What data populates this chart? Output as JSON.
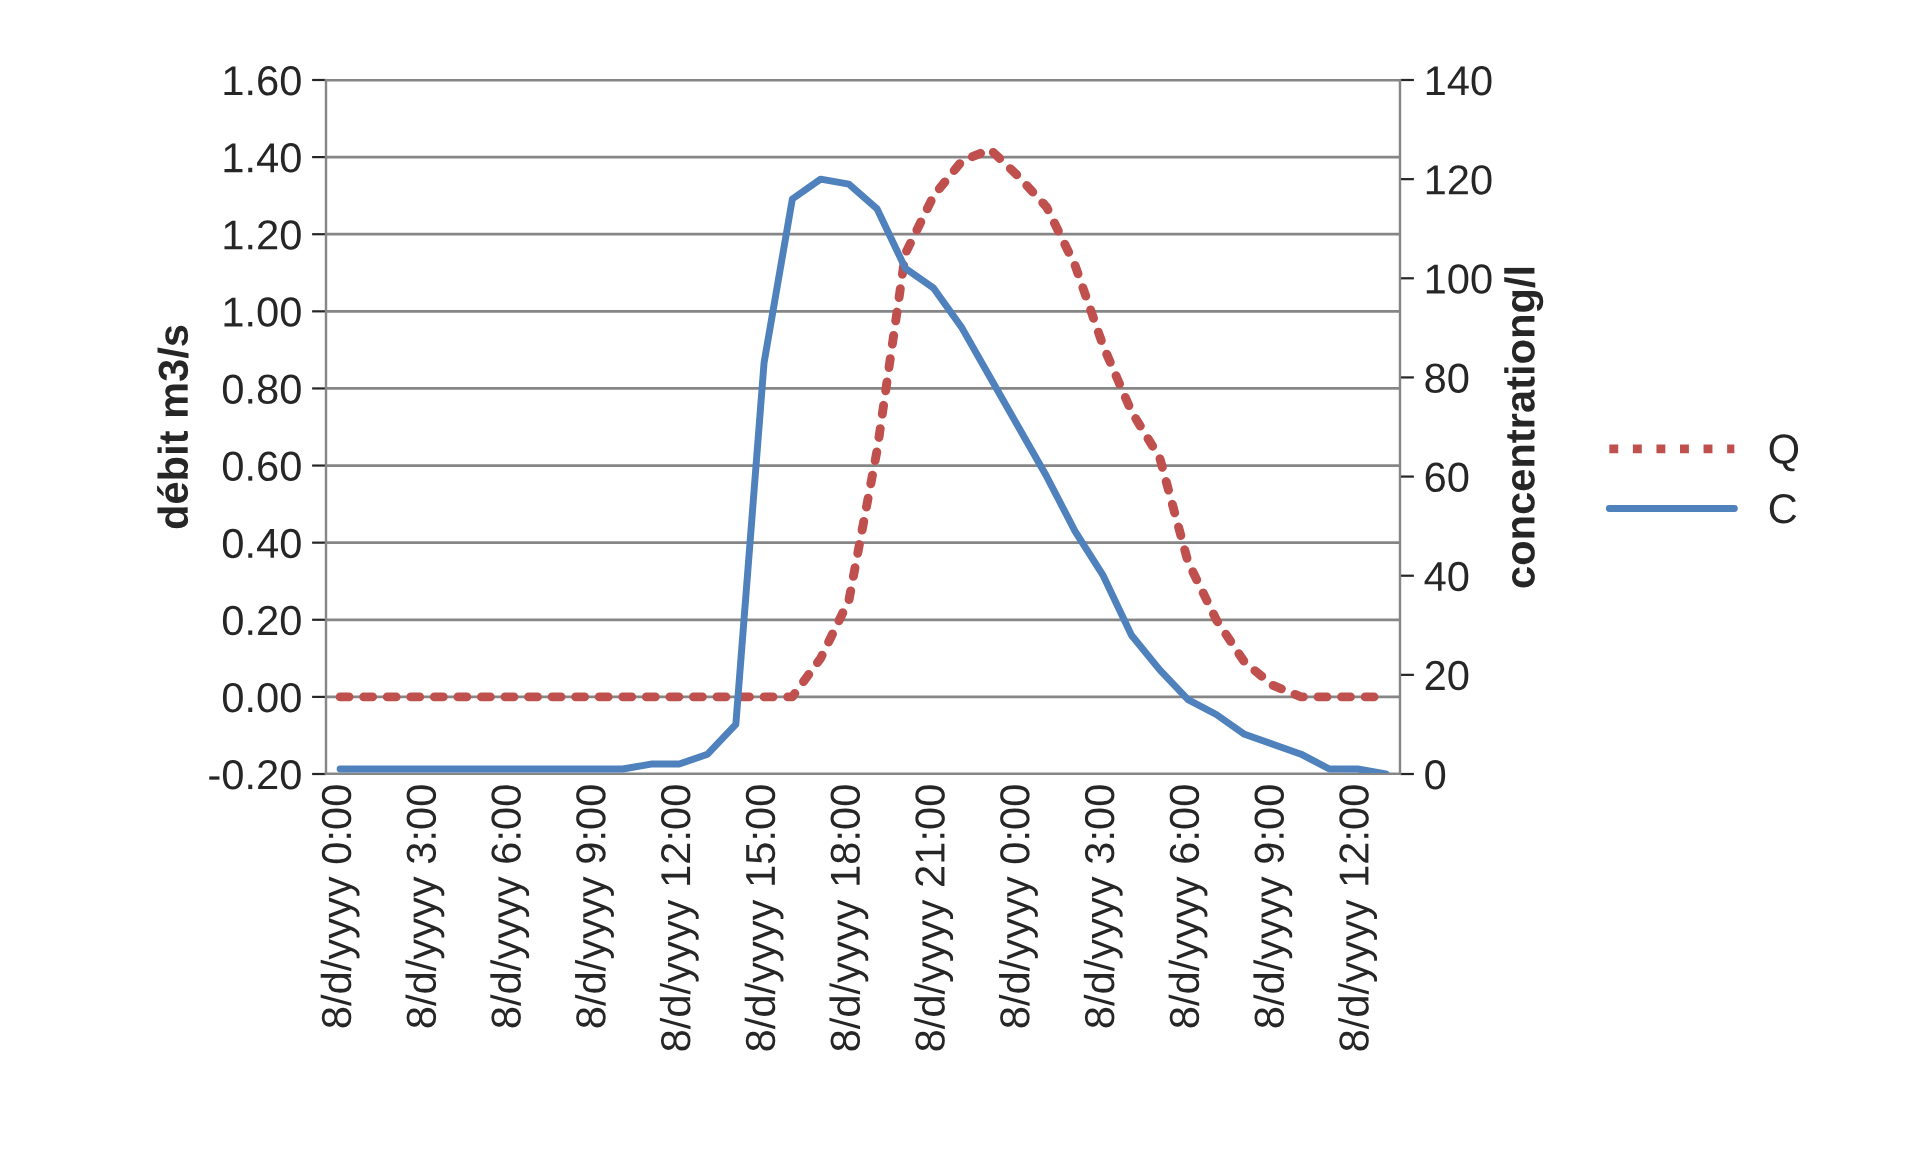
{
  "chart_data": {
    "type": "line",
    "ylabel": "débit m3/s",
    "y2label": "concentrationg/l",
    "categories": [
      "8/d/yyyy 0:00",
      null,
      null,
      "8/d/yyyy 3:00",
      null,
      null,
      "8/d/yyyy 6:00",
      null,
      null,
      "8/d/yyyy 9:00",
      null,
      null,
      "8/d/yyyy 12:00",
      null,
      null,
      "8/d/yyyy 15:00",
      null,
      null,
      "8/d/yyyy 18:00",
      null,
      null,
      "8/d/yyyy 21:00",
      null,
      null,
      "8/d/yyyy 0:00",
      null,
      null,
      "8/d/yyyy 3:00",
      null,
      null,
      "8/d/yyyy 6:00",
      null,
      null,
      "8/d/yyyy 9:00",
      null,
      null,
      "8/d/yyyy 12:00",
      null
    ],
    "series": [
      {
        "name": "Q",
        "color": "#c0504d",
        "line_style": "dotted",
        "values": [
          0,
          0,
          0,
          0,
          0,
          0,
          0,
          0,
          0,
          0,
          0,
          0,
          0,
          0,
          0,
          0,
          0,
          0.1,
          0.25,
          0.64,
          1.15,
          1.3,
          1.39,
          1.42,
          1.35,
          1.27,
          1.12,
          0.91,
          0.74,
          0.62,
          0.35,
          0.2,
          0.09,
          0.03,
          0,
          0,
          0,
          0
        ]
      },
      {
        "name": "C",
        "color": "#4f81bd",
        "line_style": "solid",
        "axis": "y2",
        "values": [
          1,
          1,
          1,
          1,
          1,
          1,
          1,
          1,
          1,
          1,
          1,
          2,
          2,
          4,
          10,
          83,
          116,
          120,
          119,
          114,
          102,
          98,
          90,
          80,
          70,
          60,
          49,
          40,
          28,
          21,
          15,
          12,
          8,
          6,
          4,
          1,
          1,
          0
        ]
      }
    ],
    "ylim": [
      -0.2,
      1.6
    ],
    "yticks": [
      {
        "value": -0.2,
        "label": "-0.20"
      },
      {
        "value": 0,
        "label": "0.00"
      },
      {
        "value": 0.2,
        "label": "0.20"
      },
      {
        "value": 0.4,
        "label": "0.40"
      },
      {
        "value": 0.6,
        "label": "0.60"
      },
      {
        "value": 0.8,
        "label": "0.80"
      },
      {
        "value": 1.0,
        "label": "1.00"
      },
      {
        "value": 1.2,
        "label": "1.20"
      },
      {
        "value": 1.4,
        "label": "1.40"
      },
      {
        "value": 1.6,
        "label": "1.60"
      }
    ],
    "y2lim": [
      0,
      140
    ],
    "y2ticks": [
      0,
      20,
      40,
      60,
      80,
      100,
      120,
      140
    ],
    "grid": "y",
    "legend": "right",
    "marker": "none"
  }
}
